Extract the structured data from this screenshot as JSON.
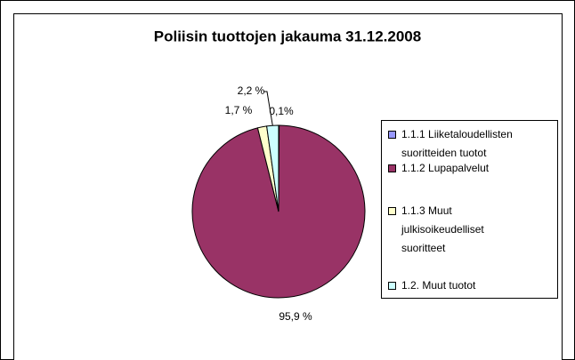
{
  "chart_data": {
    "type": "pie",
    "title": "Poliisin tuottojen jakauma 31.12.2008",
    "categories": [
      "1.1.1 Liiketaloudellisten suoritteiden tuotot",
      "1.1.2 Lupapalvelut",
      "1.1.3 Muut julkisoikeudelliset suoritteet",
      "1.2. Muut tuotot"
    ],
    "values": [
      0.1,
      95.9,
      1.7,
      2.2
    ],
    "value_labels": [
      "0,1%",
      "95,9 %",
      "1,7 %",
      "2,2 %"
    ],
    "colors": [
      "#9999ff",
      "#993366",
      "#ffffcc",
      "#ccffff"
    ],
    "legend": "right"
  }
}
